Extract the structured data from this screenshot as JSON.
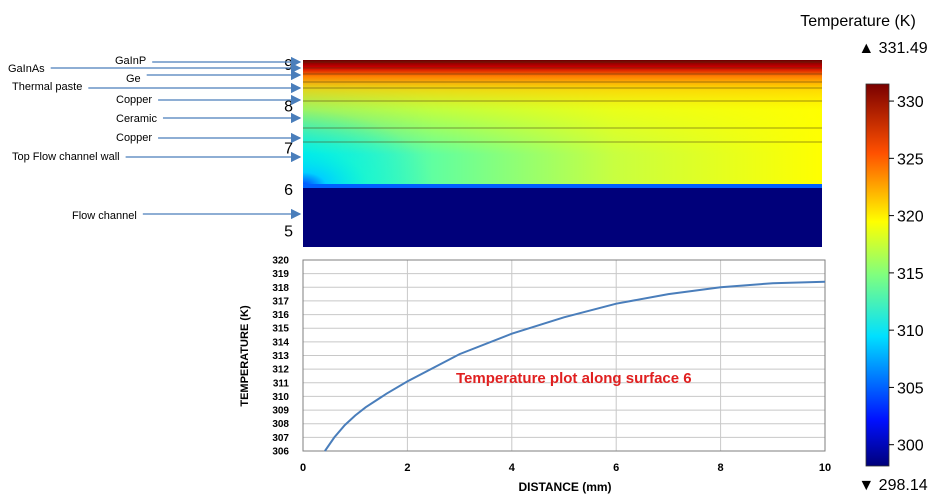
{
  "chart_data": [
    {
      "type": "heatmap",
      "y_tick_labels": [
        "5",
        "6",
        "7",
        "8",
        "9"
      ],
      "ylim": [
        4.6,
        9.1
      ],
      "layers": [
        {
          "name": "GaInP",
          "y": 8.85
        },
        {
          "name": "GaInAs",
          "y": 8.75
        },
        {
          "name": "Ge",
          "y": 8.65
        },
        {
          "name": "Thermal paste",
          "y": 8.45
        },
        {
          "name": "Copper",
          "y": 8.05
        },
        {
          "name": "Ceramic",
          "y": 7.5
        },
        {
          "name": "Copper",
          "y": 7.05
        },
        {
          "name": "Top Flow channel wall",
          "y": 6.6
        },
        {
          "name": "Flow channel",
          "y": 5.3
        }
      ],
      "colorbar": {
        "title": "Temperature (K)",
        "max_label": "▲ 331.49",
        "min_label": "▼ 298.14",
        "min": 298.14,
        "max": 331.49,
        "tick_labels": [
          "300",
          "305",
          "310",
          "315",
          "320",
          "325",
          "330"
        ],
        "tick_values": [
          300,
          305,
          310,
          315,
          320,
          325,
          330
        ]
      }
    },
    {
      "type": "line",
      "xlabel": "DISTANCE (mm)",
      "ylabel": "TEMPERATURE (K)",
      "annotation": "Temperature plot along surface 6",
      "xlim": [
        0,
        10
      ],
      "ylim": [
        306,
        320
      ],
      "x_ticks": [
        "0",
        "2",
        "4",
        "6",
        "8",
        "10"
      ],
      "y_ticks": [
        "306",
        "307",
        "308",
        "309",
        "310",
        "311",
        "312",
        "313",
        "314",
        "315",
        "316",
        "317",
        "318",
        "319",
        "320"
      ],
      "grid": true,
      "series": [
        {
          "color": "#4a7ebb",
          "x": [
            0.42,
            0.6,
            0.8,
            1.0,
            1.2,
            1.6,
            2.0,
            3.0,
            4.0,
            5.0,
            6.0,
            7.0,
            8.0,
            9.0,
            10.0
          ],
          "y": [
            306.0,
            307.0,
            307.9,
            308.6,
            309.2,
            310.2,
            311.1,
            313.1,
            314.6,
            315.8,
            316.8,
            317.5,
            318.0,
            318.3,
            318.4
          ]
        }
      ]
    }
  ]
}
